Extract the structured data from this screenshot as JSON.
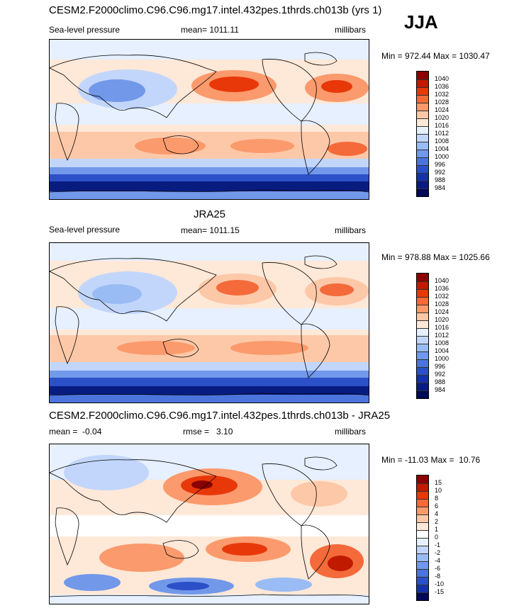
{
  "season": "JJA",
  "panels": [
    {
      "title": "CESM2.F2000climo.C96.C96.mg17.intel.432pes.1thrds.ch013b (yrs 1)",
      "left_label": "Sea-level pressure",
      "center_label": "mean= 1011.11",
      "units": "millibars",
      "minmax": "Min = 972.44 Max = 1030.47",
      "colorbar": {
        "labels": [
          "1040",
          "1036",
          "1032",
          "1028",
          "1024",
          "1020",
          "1016",
          "1012",
          "1008",
          "1004",
          "1000",
          "996",
          "992",
          "988",
          "984"
        ],
        "colors": [
          "#8b0000",
          "#c01a00",
          "#e8380a",
          "#f46a3a",
          "#fb9a6c",
          "#fdc8a8",
          "#fee8d8",
          "#e6f0ff",
          "#c2d6fb",
          "#9abcf4",
          "#7298ea",
          "#4c74dd",
          "#2c50c8",
          "#1532a8",
          "#081c80",
          "#000a55"
        ]
      },
      "map": {
        "variable": "Sea-level pressure",
        "highs": [
          "North Pacific",
          "North Atlantic",
          "South Indian Ocean",
          "South Pacific",
          "South Atlantic"
        ],
        "lows": [
          "South Asia monsoon",
          "Southern Ocean belt"
        ]
      }
    },
    {
      "title": "JRA25",
      "left_label": "Sea-level pressure",
      "center_label": "mean= 1011.15",
      "units": "millibars",
      "minmax": "Min = 978.88 Max = 1025.66",
      "colorbar": {
        "labels": [
          "1040",
          "1036",
          "1032",
          "1028",
          "1024",
          "1020",
          "1016",
          "1012",
          "1008",
          "1004",
          "1000",
          "996",
          "992",
          "988",
          "984"
        ],
        "colors": [
          "#8b0000",
          "#c01a00",
          "#e8380a",
          "#f46a3a",
          "#fb9a6c",
          "#fdc8a8",
          "#fee8d8",
          "#e6f0ff",
          "#c2d6fb",
          "#9abcf4",
          "#7298ea",
          "#4c74dd",
          "#2c50c8",
          "#1532a8",
          "#081c80",
          "#000a55"
        ]
      },
      "map": {
        "variable": "Sea-level pressure",
        "highs": [
          "North Pacific",
          "North Atlantic",
          "Southern subtropics"
        ],
        "lows": [
          "South Asia monsoon",
          "Southern Ocean belt"
        ]
      }
    },
    {
      "title": "CESM2.F2000climo.C96.C96.mg17.intel.432pes.1thrds.ch013b - JRA25",
      "left_label": "mean =  -0.04",
      "center_label": "rmse =   3.10",
      "units": "millibars",
      "minmax": "Min = -11.03 Max =  10.76",
      "colorbar": {
        "labels": [
          "15",
          "10",
          "8",
          "6",
          "4",
          "2",
          "1",
          "0",
          "-1",
          "-2",
          "-4",
          "-6",
          "-8",
          "-10",
          "-15"
        ],
        "colors": [
          "#8b0000",
          "#c01a00",
          "#e8380a",
          "#f46a3a",
          "#fb9a6c",
          "#fdc8a8",
          "#fee8d8",
          "#ffffff",
          "#e6f0ff",
          "#c2d6fb",
          "#9abcf4",
          "#7298ea",
          "#4c74dd",
          "#2c50c8",
          "#1532a8",
          "#000a55"
        ]
      },
      "map": {
        "variable": "Sea-level pressure difference",
        "positive": [
          "North Pacific",
          "South Pacific",
          "South Atlantic"
        ],
        "negative": [
          "Southern Ocean",
          "Asia"
        ]
      }
    }
  ]
}
